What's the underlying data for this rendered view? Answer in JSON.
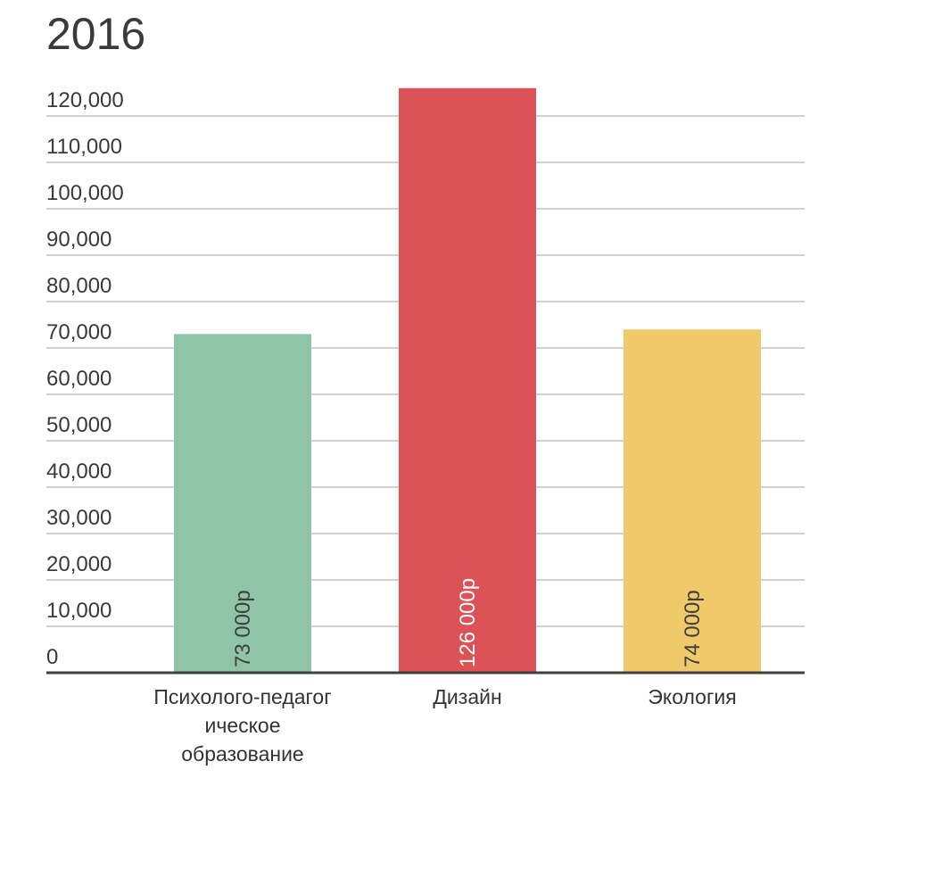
{
  "chart_data": {
    "type": "bar",
    "title": "2016",
    "categories": [
      [
        "Психолого-педагог",
        "ическое",
        "образование"
      ],
      [
        "Дизайн"
      ],
      [
        "Экология"
      ]
    ],
    "values": [
      73000,
      126000,
      74000
    ],
    "data_labels": [
      "73 000р",
      "126 000р",
      "74 000р"
    ],
    "colors": [
      "#8fc4a6",
      "#dc5256",
      "#efc96a"
    ],
    "label_colors": [
      "#3f3f3f",
      "#ffffff",
      "#3f3f3f"
    ],
    "yticks": [
      0,
      10000,
      20000,
      30000,
      40000,
      50000,
      60000,
      70000,
      80000,
      90000,
      100000,
      110000,
      120000
    ],
    "ytick_labels": [
      "0",
      "10,000",
      "20,000",
      "30,000",
      "40,000",
      "50,000",
      "60,000",
      "70,000",
      "80,000",
      "90,000",
      "100,000",
      "110,000",
      "120,000"
    ],
    "ylim": [
      0,
      126000
    ],
    "xlabel": "",
    "ylabel": "",
    "grid": true
  }
}
